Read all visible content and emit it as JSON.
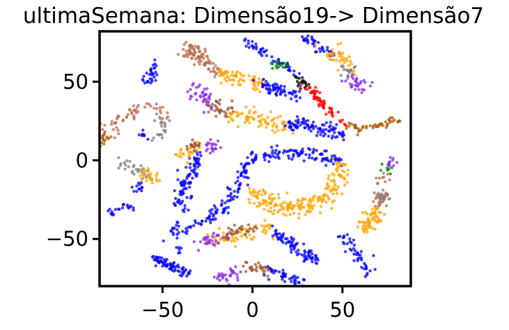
{
  "chart_data": {
    "type": "scatter",
    "title": "ultimaSemana: Dimensão19-> Dimensão7",
    "xlabel": "",
    "ylabel": "",
    "xlim": [
      -85,
      88
    ],
    "ylim": [
      -80,
      82
    ],
    "xticks": [
      {
        "value": -50,
        "label": "−50"
      },
      {
        "value": 0,
        "label": "0"
      },
      {
        "value": 50,
        "label": "50"
      }
    ],
    "yticks": [
      {
        "value": 50,
        "label": "50"
      },
      {
        "value": 0,
        "label": "0"
      },
      {
        "value": -50,
        "label": "−50"
      }
    ],
    "grid": false,
    "legend": "none",
    "colors": {
      "blue": "#0000ff",
      "orange": "#ffa500",
      "purple": "#8a2be2",
      "brown": "#a0522d",
      "sienna": "#bc6c50",
      "gray": "#808080",
      "red": "#ff0000",
      "green": "#008000",
      "black": "#000000",
      "darkorange": "#b35900"
    },
    "clusters": [
      {
        "color": "blue",
        "spread": 2.2,
        "n": 220,
        "path": [
          [
            -47,
            -46
          ],
          [
            -30,
            -40
          ],
          [
            -15,
            -30
          ],
          [
            -8,
            -15
          ],
          [
            0,
            0
          ],
          [
            15,
            5
          ],
          [
            30,
            4
          ],
          [
            42,
            2
          ],
          [
            50,
            -2
          ]
        ]
      },
      {
        "color": "blue",
        "spread": 2.0,
        "n": 90,
        "path": [
          [
            -40,
            -30
          ],
          [
            -38,
            -15
          ],
          [
            -33,
            -5
          ],
          [
            -30,
            3
          ]
        ]
      },
      {
        "color": "orange",
        "spread": 3.0,
        "n": 200,
        "path": [
          [
            50,
            -2
          ],
          [
            48,
            -12
          ],
          [
            42,
            -22
          ],
          [
            30,
            -30
          ],
          [
            15,
            -30
          ],
          [
            5,
            -25
          ],
          [
            0,
            -20
          ]
        ]
      },
      {
        "color": "orange",
        "spread": 2.5,
        "n": 60,
        "path": [
          [
            -25,
            -50
          ],
          [
            -10,
            -48
          ],
          [
            0,
            -45
          ],
          [
            10,
            -42
          ]
        ]
      },
      {
        "color": "blue",
        "spread": 1.8,
        "n": 80,
        "path": [
          [
            10,
            -45
          ],
          [
            20,
            -52
          ],
          [
            28,
            -58
          ],
          [
            35,
            -65
          ]
        ]
      },
      {
        "color": "purple",
        "spread": 2.3,
        "n": 30,
        "path": [
          [
            -28,
            -53
          ],
          [
            -22,
            -50
          ],
          [
            -17,
            -47
          ]
        ]
      },
      {
        "color": "brown",
        "spread": 2.0,
        "n": 30,
        "path": [
          [
            -17,
            -47
          ],
          [
            -8,
            -45
          ],
          [
            0,
            -43
          ]
        ]
      },
      {
        "color": "blue",
        "spread": 1.5,
        "n": 70,
        "path": [
          [
            -55,
            -62
          ],
          [
            -45,
            -68
          ],
          [
            -35,
            -72
          ]
        ]
      },
      {
        "color": "purple",
        "spread": 2.5,
        "n": 30,
        "path": [
          [
            -18,
            -75
          ],
          [
            -8,
            -70
          ]
        ]
      },
      {
        "color": "brown",
        "spread": 2.2,
        "n": 30,
        "path": [
          [
            -8,
            -70
          ],
          [
            2,
            -68
          ],
          [
            10,
            -70
          ]
        ]
      },
      {
        "color": "blue",
        "spread": 1.5,
        "n": 40,
        "path": [
          [
            10,
            -70
          ],
          [
            20,
            -75
          ],
          [
            28,
            -78
          ]
        ]
      },
      {
        "color": "purple",
        "spread": 2.6,
        "n": 40,
        "path": [
          [
            -33,
            45
          ],
          [
            -28,
            42
          ],
          [
            -24,
            36
          ]
        ]
      },
      {
        "color": "brown",
        "spread": 2.2,
        "n": 30,
        "path": [
          [
            -24,
            36
          ],
          [
            -18,
            32
          ],
          [
            -12,
            30
          ]
        ]
      },
      {
        "color": "orange",
        "spread": 2.6,
        "n": 80,
        "path": [
          [
            -12,
            30
          ],
          [
            0,
            26
          ],
          [
            12,
            24
          ],
          [
            20,
            22
          ]
        ]
      },
      {
        "color": "blue",
        "spread": 2.2,
        "n": 90,
        "path": [
          [
            20,
            22
          ],
          [
            30,
            22
          ],
          [
            40,
            20
          ],
          [
            50,
            15
          ]
        ]
      },
      {
        "color": "sienna",
        "spread": 2.5,
        "n": 60,
        "path": [
          [
            -35,
            68
          ],
          [
            -25,
            62
          ],
          [
            -18,
            56
          ]
        ]
      },
      {
        "color": "orange",
        "spread": 2.5,
        "n": 70,
        "path": [
          [
            -18,
            56
          ],
          [
            -5,
            50
          ],
          [
            5,
            48
          ]
        ]
      },
      {
        "color": "blue",
        "spread": 1.8,
        "n": 60,
        "path": [
          [
            5,
            48
          ],
          [
            15,
            44
          ],
          [
            25,
            42
          ]
        ]
      },
      {
        "color": "sienna",
        "spread": 2.0,
        "n": 30,
        "path": [
          [
            -38,
            70
          ],
          [
            -30,
            70
          ]
        ]
      },
      {
        "color": "blue",
        "spread": 1.4,
        "n": 50,
        "path": [
          [
            -5,
            78
          ],
          [
            5,
            70
          ],
          [
            15,
            62
          ],
          [
            25,
            55
          ]
        ]
      },
      {
        "color": "green",
        "spread": 1.5,
        "n": 15,
        "path": [
          [
            12,
            62
          ],
          [
            18,
            60
          ]
        ]
      },
      {
        "color": "black",
        "spread": 1.4,
        "n": 18,
        "path": [
          [
            24,
            52
          ],
          [
            30,
            48
          ]
        ]
      },
      {
        "color": "red",
        "spread": 1.6,
        "n": 60,
        "path": [
          [
            30,
            48
          ],
          [
            38,
            38
          ],
          [
            45,
            30
          ],
          [
            52,
            24
          ]
        ]
      },
      {
        "color": "darkorange",
        "spread": 1.6,
        "n": 50,
        "path": [
          [
            52,
            22
          ],
          [
            62,
            20
          ],
          [
            72,
            22
          ],
          [
            80,
            27
          ]
        ]
      },
      {
        "color": "blue",
        "spread": 1.5,
        "n": 40,
        "path": [
          [
            28,
            78
          ],
          [
            40,
            70
          ],
          [
            45,
            68
          ]
        ]
      },
      {
        "color": "orange",
        "spread": 2.5,
        "n": 40,
        "path": [
          [
            40,
            70
          ],
          [
            50,
            65
          ],
          [
            55,
            58
          ]
        ]
      },
      {
        "color": "purple",
        "spread": 2.6,
        "n": 30,
        "path": [
          [
            54,
            54
          ],
          [
            60,
            46
          ],
          [
            65,
            45
          ]
        ]
      },
      {
        "color": "gray",
        "spread": 2.0,
        "n": 15,
        "path": [
          [
            50,
            60
          ],
          [
            55,
            55
          ]
        ]
      },
      {
        "color": "sienna",
        "spread": 2.6,
        "n": 60,
        "path": [
          [
            -82,
            14
          ],
          [
            -75,
            26
          ],
          [
            -65,
            32
          ],
          [
            -55,
            34
          ],
          [
            -48,
            28
          ]
        ]
      },
      {
        "color": "gray",
        "spread": 2.0,
        "n": 20,
        "path": [
          [
            -48,
            28
          ],
          [
            -50,
            18
          ],
          [
            -55,
            12
          ]
        ]
      },
      {
        "color": "darkorange",
        "spread": 2.0,
        "n": 15,
        "path": [
          [
            -84,
            10
          ],
          [
            -80,
            18
          ]
        ]
      },
      {
        "color": "gray",
        "spread": 2.4,
        "n": 30,
        "path": [
          [
            -75,
            -3
          ],
          [
            -65,
            -5
          ],
          [
            -60,
            -8
          ]
        ]
      },
      {
        "color": "orange",
        "spread": 2.4,
        "n": 25,
        "path": [
          [
            -60,
            -8
          ],
          [
            -55,
            -12
          ]
        ]
      },
      {
        "color": "purple",
        "spread": 2.2,
        "n": 20,
        "path": [
          [
            -25,
            10
          ],
          [
            -20,
            8
          ]
        ]
      },
      {
        "color": "orange",
        "spread": 2.2,
        "n": 30,
        "path": [
          [
            -40,
            0
          ],
          [
            -35,
            6
          ],
          [
            -30,
            10
          ]
        ]
      },
      {
        "color": "brown",
        "spread": 1.8,
        "n": 15,
        "path": [
          [
            -35,
            8
          ],
          [
            -30,
            10
          ]
        ]
      },
      {
        "color": "blue",
        "spread": 1.4,
        "n": 30,
        "path": [
          [
            -55,
            62
          ],
          [
            -57,
            50
          ],
          [
            -62,
            50
          ]
        ]
      },
      {
        "color": "blue",
        "spread": 1.2,
        "n": 20,
        "path": [
          [
            -65,
            -30
          ],
          [
            -75,
            -30
          ],
          [
            -80,
            -35
          ]
        ]
      },
      {
        "color": "orange",
        "spread": 2.2,
        "n": 60,
        "path": [
          [
            60,
            -45
          ],
          [
            65,
            -40
          ],
          [
            70,
            -30
          ]
        ]
      },
      {
        "color": "sienna",
        "spread": 2.2,
        "n": 35,
        "path": [
          [
            70,
            -30
          ],
          [
            72,
            -20
          ],
          [
            74,
            -10
          ]
        ]
      },
      {
        "color": "gray",
        "spread": 1.8,
        "n": 15,
        "path": [
          [
            72,
            -22
          ],
          [
            74,
            -26
          ]
        ]
      },
      {
        "color": "green",
        "spread": 1.2,
        "n": 8,
        "path": [
          [
            74,
            -8
          ],
          [
            76,
            -3
          ]
        ]
      },
      {
        "color": "purple",
        "spread": 1.4,
        "n": 10,
        "path": [
          [
            76,
            -3
          ],
          [
            78,
            2
          ]
        ]
      },
      {
        "color": "blue",
        "spread": 1.8,
        "n": 45,
        "path": [
          [
            50,
            -48
          ],
          [
            55,
            -55
          ],
          [
            60,
            -62
          ],
          [
            65,
            -72
          ]
        ]
      },
      {
        "color": "blue",
        "spread": 1.5,
        "n": 12,
        "path": [
          [
            -62,
            -14
          ],
          [
            -64,
            -20
          ]
        ]
      },
      {
        "color": "blue",
        "spread": 1.0,
        "n": 6,
        "path": [
          [
            -42,
            -55
          ],
          [
            -40,
            -58
          ]
        ]
      },
      {
        "color": "blue",
        "spread": 1.0,
        "n": 8,
        "path": [
          [
            -60,
            12
          ],
          [
            -62,
            18
          ]
        ]
      }
    ]
  }
}
